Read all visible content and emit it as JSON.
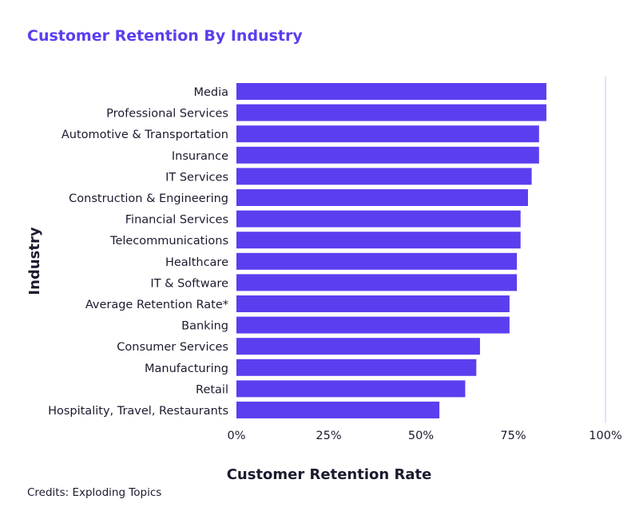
{
  "chart_data": {
    "type": "bar",
    "orientation": "horizontal",
    "title": "Customer Retention By Industry",
    "xlabel": "Customer Retention Rate",
    "ylabel": "Industry",
    "categories": [
      "Media",
      "Professional Services",
      "Automotive & Transportation",
      "Insurance",
      "IT Services",
      "Construction & Engineering",
      "Financial Services",
      "Telecommunications",
      "Healthcare",
      "IT & Software",
      "Average Retention Rate*",
      "Banking",
      "Consumer Services",
      "Manufacturing",
      "Retail",
      "Hospitality, Travel, Restaurants"
    ],
    "values": [
      84,
      84,
      82,
      82,
      80,
      79,
      77,
      77,
      76,
      76,
      74,
      74,
      66,
      65,
      62,
      55
    ],
    "value_unit": "%",
    "xlim": [
      0,
      100
    ],
    "x_ticks": [
      "0%",
      "25%",
      "50%",
      "75%",
      "100%"
    ],
    "grid": "vertical line at 100% only",
    "legend": "none",
    "colors": {
      "bar": "#5B3EEF",
      "title": "#5B3EEF",
      "text": "#1b1b2f",
      "gridline": "#c9c6f2"
    }
  },
  "credits": "Credits: Exploding Topics"
}
